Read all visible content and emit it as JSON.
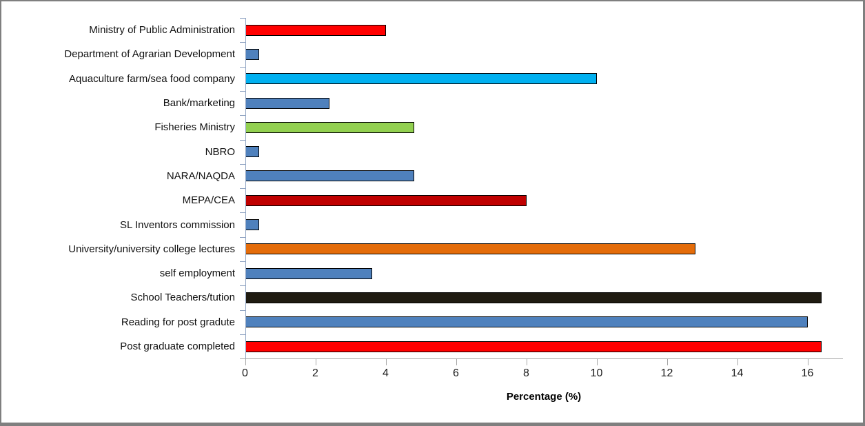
{
  "chart_data": {
    "type": "bar",
    "orientation": "horizontal",
    "title": "",
    "xlabel": "Percentage (%)",
    "ylabel": "",
    "xlim": [
      0,
      17
    ],
    "xticks": [
      0,
      2,
      4,
      6,
      8,
      10,
      12,
      14,
      16
    ],
    "grid": false,
    "legend": false,
    "categories": [
      "Ministry of Public Administration",
      "Department of Agrarian Development",
      "Aquaculture farm/sea food company",
      "Bank/marketing",
      "Fisheries Ministry",
      "NBRO",
      "NARA/NAQDA",
      "MEPA/CEA",
      "SL Inventors commission",
      "University/university college lectures",
      "self employment",
      "School Teachers/tution",
      "Reading for post gradute",
      "Post graduate completed"
    ],
    "values": [
      4,
      0.4,
      10,
      2.4,
      4.8,
      0.4,
      4.8,
      8,
      0.4,
      12.8,
      3.6,
      16.4,
      16,
      16.4
    ],
    "bar_colors": [
      "#ff0000",
      "#4f81bd",
      "#00b0f0",
      "#4f81bd",
      "#92d050",
      "#4f81bd",
      "#4f81bd",
      "#c00000",
      "#4f81bd",
      "#e46c0a",
      "#4f81bd",
      "#1f1b11",
      "#4f81bd",
      "#ff0000"
    ],
    "colors": {
      "bar_border": "#000000",
      "category_axis": "#8fa3c2",
      "value_axis": "#a6a6a6",
      "text": "#111111",
      "frame_border": "#7f7f7f",
      "background": "#ffffff"
    }
  }
}
